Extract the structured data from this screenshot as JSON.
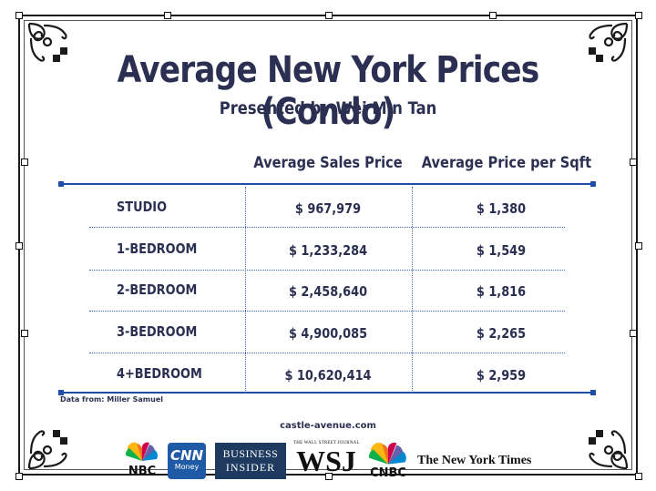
{
  "title": "Average New York Prices (Condo)",
  "subtitle": "Presented by Wei Min Tan",
  "columns": {
    "sales": "Average Sales Price",
    "sqft": "Average Price per Sqft"
  },
  "rows": [
    {
      "label": "STUDIO",
      "sales": "$ 967,979",
      "sqft": "$ 1,380"
    },
    {
      "label": "1-BEDROOM",
      "sales": "$ 1,233,284",
      "sqft": "$ 1,549"
    },
    {
      "label": "2-BEDROOM",
      "sales": "$ 2,458,640",
      "sqft": "$ 1,816"
    },
    {
      "label": "3-BEDROOM",
      "sales": "$ 4,900,085",
      "sqft": "$ 2,265"
    },
    {
      "label": "4+BEDROOM",
      "sales": "$ 10,620,414",
      "sqft": "$ 2,959"
    }
  ],
  "source": "Data from: Miller Samuel",
  "url": "castle-avenue.com",
  "logos": {
    "nbc": "NBC",
    "cnn_top": "CNN",
    "cnn_bottom": "Money",
    "bi_top": "BUSINESS",
    "bi_bottom": "INSIDER",
    "wsj_small": "THE WALL STREET JOURNAL",
    "wsj": "WSJ",
    "cnbc": "CNBC",
    "nyt": "The New York Times"
  },
  "colors": {
    "navy": "#2b3052",
    "rule_blue": "#1e4ea8"
  }
}
